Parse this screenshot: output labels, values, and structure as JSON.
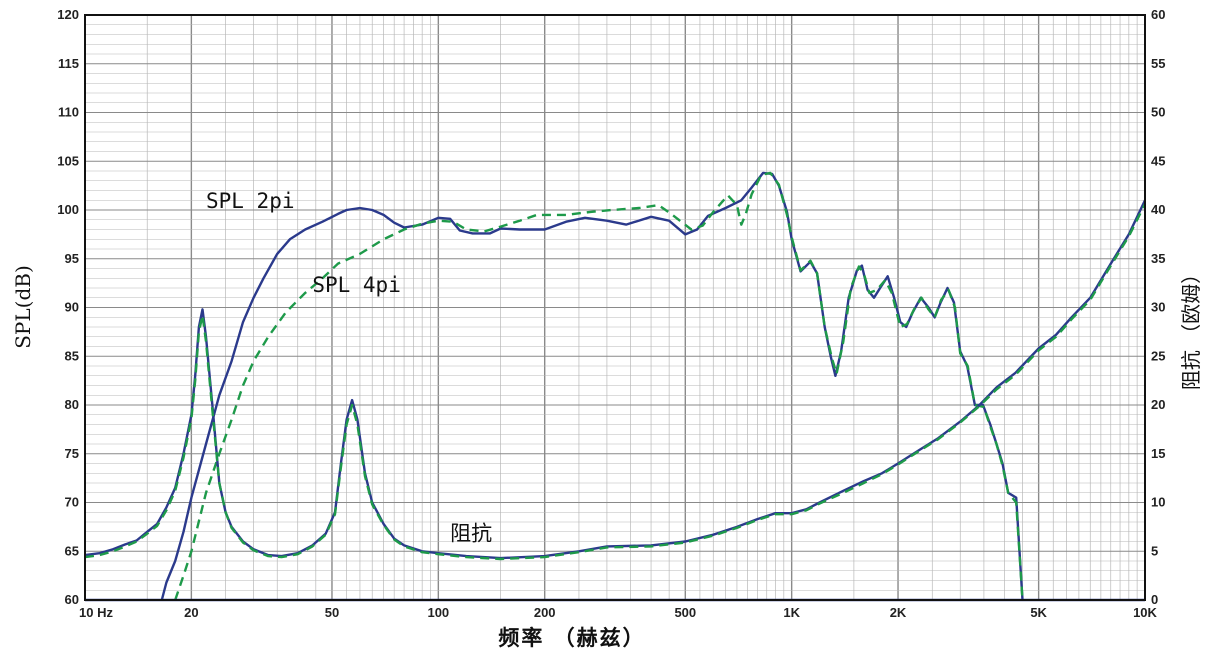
{
  "chart_data": {
    "type": "line",
    "y_left_label": "SPL(dB)",
    "y_right_label": "阻抗 （欧姆）",
    "x_label": "频率 （赫兹）",
    "x_scale": "log",
    "xlim": [
      10,
      10000
    ],
    "ylim_left": [
      60,
      120
    ],
    "ylim_right": [
      0,
      60
    ],
    "grid": true,
    "x_ticks": [
      {
        "value": 10,
        "label": "10  Hz"
      },
      {
        "value": 20,
        "label": "20"
      },
      {
        "value": 50,
        "label": "50"
      },
      {
        "value": 100,
        "label": "100"
      },
      {
        "value": 200,
        "label": "200"
      },
      {
        "value": 500,
        "label": "500"
      },
      {
        "value": 1000,
        "label": "1K"
      },
      {
        "value": 2000,
        "label": "2K"
      },
      {
        "value": 5000,
        "label": "5K"
      },
      {
        "value": 10000,
        "label": "10K"
      }
    ],
    "y_left_ticks": [
      "60",
      "65",
      "70",
      "75",
      "80",
      "85",
      "90",
      "95",
      "100",
      "105",
      "110",
      "115",
      "120"
    ],
    "y_right_ticks": [
      "0",
      "5",
      "10",
      "15",
      "20",
      "25",
      "30",
      "35",
      "40",
      "45",
      "50",
      "55",
      "60"
    ],
    "annotations": [
      {
        "text": "SPL 2pi",
        "x": 22,
        "y": 100.2
      },
      {
        "text": "SPL 4pi",
        "x": 44,
        "y": 91.6
      },
      {
        "text": "阻抗",
        "x": 108,
        "y": 66.1
      }
    ],
    "colors": {
      "solid": "#2b3a8c",
      "dashed": "#1e9a4a",
      "grid": "#b8b8b8",
      "grid_major": "#8a8a8a"
    },
    "series": [
      {
        "style": "solid",
        "axis": "left",
        "points": [
          [
            16.5,
            60
          ],
          [
            17,
            61.8
          ],
          [
            18,
            64
          ],
          [
            19,
            67
          ],
          [
            20,
            70.5
          ],
          [
            22,
            76
          ],
          [
            24,
            81
          ],
          [
            26,
            84.5
          ],
          [
            28,
            88.5
          ],
          [
            30,
            91
          ],
          [
            32,
            93
          ],
          [
            35,
            95.5
          ],
          [
            38,
            97
          ],
          [
            42,
            98
          ],
          [
            47,
            98.8
          ],
          [
            52,
            99.6
          ],
          [
            55,
            100
          ],
          [
            60,
            100.2
          ],
          [
            65,
            100
          ],
          [
            70,
            99.5
          ],
          [
            75,
            98.7
          ],
          [
            80,
            98.2
          ],
          [
            90,
            98.5
          ],
          [
            100,
            99.2
          ],
          [
            108,
            99.1
          ],
          [
            115,
            97.9
          ],
          [
            125,
            97.6
          ],
          [
            140,
            97.6
          ],
          [
            150,
            98.1
          ],
          [
            170,
            98.0
          ],
          [
            200,
            98.0
          ],
          [
            230,
            98.8
          ],
          [
            260,
            99.2
          ],
          [
            300,
            98.9
          ],
          [
            340,
            98.5
          ],
          [
            400,
            99.3
          ],
          [
            450,
            98.9
          ],
          [
            500,
            97.5
          ],
          [
            540,
            98.0
          ],
          [
            580,
            99.4
          ],
          [
            650,
            100.2
          ],
          [
            720,
            101.0
          ],
          [
            770,
            102.3
          ],
          [
            830,
            103.8
          ],
          [
            880,
            103.7
          ],
          [
            920,
            102.5
          ],
          [
            970,
            99.8
          ],
          [
            1000,
            97.0
          ],
          [
            1060,
            93.7
          ],
          [
            1130,
            94.7
          ],
          [
            1180,
            93.5
          ],
          [
            1240,
            88.0
          ],
          [
            1290,
            85.0
          ],
          [
            1330,
            83.0
          ],
          [
            1380,
            85.5
          ],
          [
            1450,
            91.0
          ],
          [
            1530,
            93.8
          ],
          [
            1580,
            94.3
          ],
          [
            1640,
            91.8
          ],
          [
            1710,
            91.0
          ],
          [
            1780,
            92.0
          ],
          [
            1870,
            93.2
          ],
          [
            1950,
            91.0
          ],
          [
            2030,
            88.5
          ],
          [
            2110,
            88.0
          ],
          [
            2200,
            89.5
          ],
          [
            2320,
            91.0
          ],
          [
            2440,
            90.0
          ],
          [
            2540,
            89.0
          ],
          [
            2640,
            90.5
          ],
          [
            2760,
            92.0
          ],
          [
            2880,
            90.5
          ],
          [
            3000,
            85.5
          ],
          [
            3140,
            84.0
          ],
          [
            3300,
            80.0
          ],
          [
            3480,
            80.0
          ],
          [
            3650,
            78.0
          ],
          [
            3800,
            76.0
          ],
          [
            3950,
            74.0
          ],
          [
            4100,
            71.0
          ],
          [
            4320,
            70.5
          ],
          [
            4500,
            60.0
          ]
        ]
      },
      {
        "style": "dashed",
        "axis": "left",
        "points": [
          [
            18,
            60
          ],
          [
            19,
            62.5
          ],
          [
            20,
            65
          ],
          [
            22,
            71
          ],
          [
            24,
            75
          ],
          [
            26,
            78.5
          ],
          [
            28,
            82
          ],
          [
            30,
            84.5
          ],
          [
            33,
            87
          ],
          [
            37,
            89.5
          ],
          [
            42,
            91.5
          ],
          [
            47,
            93
          ],
          [
            52,
            94.5
          ],
          [
            60,
            95.5
          ],
          [
            70,
            97
          ],
          [
            80,
            98
          ],
          [
            90,
            98.6
          ],
          [
            100,
            98.9
          ],
          [
            110,
            98.8
          ],
          [
            120,
            98.0
          ],
          [
            135,
            97.8
          ],
          [
            150,
            98.3
          ],
          [
            170,
            98.9
          ],
          [
            190,
            99.5
          ],
          [
            230,
            99.5
          ],
          [
            270,
            99.8
          ],
          [
            310,
            100.0
          ],
          [
            370,
            100.2
          ],
          [
            420,
            100.5
          ],
          [
            460,
            99.5
          ],
          [
            520,
            98.0
          ],
          [
            560,
            98.4
          ],
          [
            600,
            99.8
          ],
          [
            660,
            101.5
          ],
          [
            700,
            100.5
          ],
          [
            720,
            98.5
          ],
          [
            740,
            99.5
          ],
          [
            770,
            101.6
          ],
          [
            820,
            103.6
          ],
          [
            870,
            103.8
          ],
          [
            920,
            102.6
          ],
          [
            970,
            99.5
          ],
          [
            1000,
            97.2
          ],
          [
            1060,
            93.8
          ],
          [
            1130,
            94.8
          ],
          [
            1180,
            93.5
          ],
          [
            1240,
            88.0
          ],
          [
            1300,
            84.8
          ],
          [
            1340,
            83.2
          ],
          [
            1400,
            86.5
          ],
          [
            1470,
            92.0
          ],
          [
            1550,
            94.2
          ],
          [
            1600,
            93.5
          ],
          [
            1660,
            91.5
          ],
          [
            1740,
            91.8
          ],
          [
            1840,
            92.8
          ],
          [
            1920,
            91.5
          ],
          [
            2030,
            88.0
          ],
          [
            2120,
            88.3
          ],
          [
            2220,
            89.8
          ],
          [
            2330,
            91.0
          ],
          [
            2440,
            89.8
          ],
          [
            2540,
            89.0
          ],
          [
            2650,
            90.8
          ],
          [
            2780,
            91.8
          ],
          [
            2900,
            90.0
          ],
          [
            3000,
            85.3
          ],
          [
            3150,
            84.0
          ],
          [
            3300,
            80.0
          ],
          [
            3500,
            79.8
          ],
          [
            3650,
            77.8
          ],
          [
            3800,
            76.0
          ],
          [
            3950,
            73.8
          ],
          [
            4100,
            71.0
          ],
          [
            4320,
            70.0
          ],
          [
            4500,
            60.0
          ]
        ]
      },
      {
        "style": "solid",
        "axis": "right",
        "points": [
          [
            10,
            4.6
          ],
          [
            11,
            4.8
          ],
          [
            12,
            5.2
          ],
          [
            13,
            5.7
          ],
          [
            14,
            6.1
          ],
          [
            15,
            7
          ],
          [
            16,
            7.8
          ],
          [
            17,
            9.5
          ],
          [
            18,
            11.5
          ],
          [
            19,
            15
          ],
          [
            20,
            19
          ],
          [
            20.5,
            23
          ],
          [
            21,
            28
          ],
          [
            21.5,
            29.8
          ],
          [
            22,
            27
          ],
          [
            23,
            19.5
          ],
          [
            24,
            12
          ],
          [
            25,
            9
          ],
          [
            26,
            7.5
          ],
          [
            28,
            6
          ],
          [
            30,
            5.2
          ],
          [
            33,
            4.6
          ],
          [
            36,
            4.5
          ],
          [
            40,
            4.8
          ],
          [
            44,
            5.6
          ],
          [
            48,
            6.8
          ],
          [
            51,
            9
          ],
          [
            53,
            14
          ],
          [
            55,
            18.5
          ],
          [
            57,
            20.5
          ],
          [
            59,
            18.5
          ],
          [
            62,
            13
          ],
          [
            65,
            10
          ],
          [
            70,
            7.8
          ],
          [
            75,
            6.3
          ],
          [
            80,
            5.6
          ],
          [
            90,
            5
          ],
          [
            100,
            4.8
          ],
          [
            120,
            4.5
          ],
          [
            150,
            4.3
          ],
          [
            200,
            4.5
          ],
          [
            250,
            5.0
          ],
          [
            300,
            5.5
          ],
          [
            400,
            5.6
          ],
          [
            500,
            6.0
          ],
          [
            600,
            6.7
          ],
          [
            700,
            7.5
          ],
          [
            800,
            8.3
          ],
          [
            900,
            8.9
          ],
          [
            1000,
            8.9
          ],
          [
            1100,
            9.3
          ],
          [
            1200,
            10.0
          ],
          [
            1400,
            11.2
          ],
          [
            1600,
            12.2
          ],
          [
            1800,
            13.0
          ],
          [
            2000,
            14.0
          ],
          [
            2300,
            15.4
          ],
          [
            2600,
            16.6
          ],
          [
            3000,
            18.3
          ],
          [
            3400,
            20.0
          ],
          [
            3800,
            21.8
          ],
          [
            4300,
            23.3
          ],
          [
            5000,
            25.8
          ],
          [
            5600,
            27.2
          ],
          [
            6200,
            29.0
          ],
          [
            7000,
            31.0
          ],
          [
            8000,
            34.5
          ],
          [
            9000,
            37.5
          ],
          [
            10000,
            41.0
          ]
        ]
      },
      {
        "style": "dashed",
        "axis": "right",
        "points": [
          [
            10,
            4.4
          ],
          [
            11,
            4.6
          ],
          [
            12,
            5.0
          ],
          [
            13,
            5.5
          ],
          [
            14,
            6.0
          ],
          [
            15,
            6.8
          ],
          [
            16,
            7.6
          ],
          [
            17,
            9.2
          ],
          [
            18,
            11.2
          ],
          [
            19,
            14.6
          ],
          [
            20,
            18.6
          ],
          [
            20.5,
            22.5
          ],
          [
            21,
            27.5
          ],
          [
            21.5,
            29.2
          ],
          [
            22,
            26.5
          ],
          [
            23,
            19
          ],
          [
            24,
            12
          ],
          [
            25,
            9
          ],
          [
            26,
            7.4
          ],
          [
            28,
            5.9
          ],
          [
            30,
            5.1
          ],
          [
            33,
            4.5
          ],
          [
            36,
            4.4
          ],
          [
            40,
            4.7
          ],
          [
            44,
            5.5
          ],
          [
            48,
            6.7
          ],
          [
            51,
            8.8
          ],
          [
            53,
            13.6
          ],
          [
            55,
            18
          ],
          [
            57,
            20
          ],
          [
            59,
            18
          ],
          [
            62,
            12.7
          ],
          [
            65,
            9.8
          ],
          [
            70,
            7.7
          ],
          [
            75,
            6.2
          ],
          [
            80,
            5.5
          ],
          [
            90,
            4.9
          ],
          [
            100,
            4.7
          ],
          [
            120,
            4.4
          ],
          [
            150,
            4.2
          ],
          [
            200,
            4.4
          ],
          [
            250,
            4.9
          ],
          [
            300,
            5.4
          ],
          [
            400,
            5.5
          ],
          [
            500,
            5.9
          ],
          [
            600,
            6.6
          ],
          [
            700,
            7.4
          ],
          [
            800,
            8.2
          ],
          [
            900,
            8.8
          ],
          [
            1000,
            8.8
          ],
          [
            1100,
            9.2
          ],
          [
            1200,
            9.9
          ],
          [
            1400,
            11.0
          ],
          [
            1600,
            12.0
          ],
          [
            1800,
            12.9
          ],
          [
            2000,
            13.9
          ],
          [
            2300,
            15.3
          ],
          [
            2600,
            16.5
          ],
          [
            3000,
            18.2
          ],
          [
            3400,
            19.9
          ],
          [
            3800,
            21.6
          ],
          [
            4300,
            23.1
          ],
          [
            5000,
            25.6
          ],
          [
            5600,
            27.0
          ],
          [
            6200,
            28.8
          ],
          [
            7000,
            30.8
          ],
          [
            8000,
            34.3
          ],
          [
            9000,
            37.3
          ],
          [
            10000,
            40.6
          ]
        ]
      },
      {
        "style": "solid",
        "axis": "left",
        "points": [
          [
            10,
            60
          ],
          [
            4500,
            60
          ],
          [
            10000,
            60
          ]
        ]
      }
    ]
  }
}
